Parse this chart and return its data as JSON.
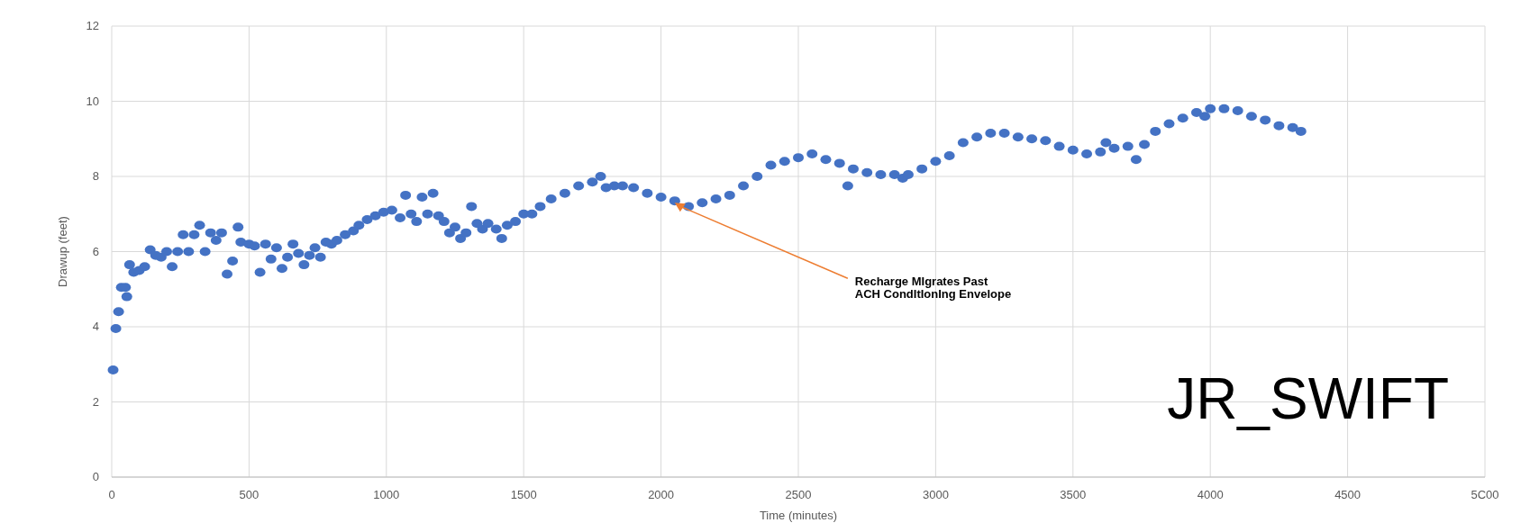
{
  "chart_data": {
    "type": "scatter",
    "xlabel": "Time (minutes)",
    "ylabel": "Drawup (feet)",
    "xlim": [
      0,
      5000
    ],
    "xticks": [
      0,
      500,
      1000,
      1500,
      2000,
      2500,
      3000,
      3500,
      4000,
      4500,
      {
        "value": 5000,
        "label": "5C00"
      }
    ],
    "ylim": [
      0,
      12
    ],
    "yticks": [
      0,
      2,
      4,
      6,
      8,
      10,
      12
    ],
    "grid": true,
    "marker": "circle",
    "series": [
      {
        "color": "#4472c4",
        "x": [
          5,
          15,
          25,
          35,
          50,
          55,
          65,
          80,
          100,
          120,
          140,
          160,
          180,
          200,
          220,
          240,
          260,
          280,
          300,
          320,
          340,
          360,
          380,
          400,
          420,
          440,
          460,
          470,
          500,
          520,
          540,
          560,
          580,
          600,
          620,
          640,
          660,
          680,
          700,
          720,
          740,
          760,
          780,
          800,
          820,
          850,
          880,
          900,
          930,
          960,
          990,
          1020,
          1050,
          1070,
          1090,
          1110,
          1130,
          1150,
          1170,
          1190,
          1210,
          1230,
          1250,
          1270,
          1290,
          1310,
          1330,
          1350,
          1370,
          1400,
          1420,
          1440,
          1470,
          1500,
          1530,
          1560,
          1600,
          1650,
          1700,
          1750,
          1780,
          1800,
          1830,
          1860,
          1900,
          1950,
          2000,
          2050,
          2100,
          2150,
          2200,
          2250,
          2300,
          2350,
          2400,
          2450,
          2500,
          2550,
          2600,
          2650,
          2680,
          2700,
          2750,
          2800,
          2850,
          2880,
          2900,
          2950,
          3000,
          3050,
          3100,
          3150,
          3200,
          3250,
          3300,
          3350,
          3400,
          3450,
          3500,
          3550,
          3600,
          3620,
          3650,
          3700,
          3730,
          3760,
          3800,
          3850,
          3900,
          3950,
          3980,
          4000,
          4050,
          4100,
          4150,
          4200,
          4250,
          4300,
          4330
        ],
        "values": [
          2.85,
          3.95,
          4.4,
          5.05,
          5.05,
          4.8,
          5.65,
          5.45,
          5.5,
          5.6,
          6.05,
          5.9,
          5.85,
          6.0,
          5.6,
          6.0,
          6.45,
          6.0,
          6.45,
          6.7,
          6.0,
          6.5,
          6.3,
          6.5,
          5.4,
          5.75,
          6.65,
          6.25,
          6.2,
          6.15,
          5.45,
          6.2,
          5.8,
          6.1,
          5.55,
          5.85,
          6.2,
          5.95,
          5.65,
          5.9,
          6.1,
          5.85,
          6.25,
          6.2,
          6.3,
          6.45,
          6.55,
          6.7,
          6.85,
          6.95,
          7.05,
          7.1,
          6.9,
          7.5,
          7.0,
          6.8,
          7.45,
          7.0,
          7.55,
          6.95,
          6.8,
          6.5,
          6.65,
          6.35,
          6.5,
          7.2,
          6.75,
          6.6,
          6.75,
          6.6,
          6.35,
          6.7,
          6.8,
          7.0,
          7.0,
          7.2,
          7.4,
          7.55,
          7.75,
          7.85,
          8.0,
          7.7,
          7.75,
          7.75,
          7.7,
          7.55,
          7.45,
          7.35,
          7.2,
          7.3,
          7.4,
          7.5,
          7.75,
          8.0,
          8.3,
          8.4,
          8.5,
          8.6,
          8.45,
          8.35,
          7.75,
          8.2,
          8.1,
          8.05,
          8.05,
          7.95,
          8.05,
          8.2,
          8.4,
          8.55,
          8.9,
          9.05,
          9.15,
          9.15,
          9.05,
          9.0,
          8.95,
          8.8,
          8.7,
          8.6,
          8.65,
          8.9,
          8.75,
          8.8,
          8.45,
          8.85,
          9.2,
          9.4,
          9.55,
          9.7,
          9.6,
          9.8,
          9.8,
          9.75,
          9.6,
          9.5,
          9.35,
          9.3,
          9.2
        ]
      }
    ],
    "annotations": [
      {
        "text": "Recharge MIgrates Past\nACH CondItIonIng Envelope",
        "x": 2050,
        "y": 7.3
      },
      "JR_SWIFT"
    ]
  }
}
